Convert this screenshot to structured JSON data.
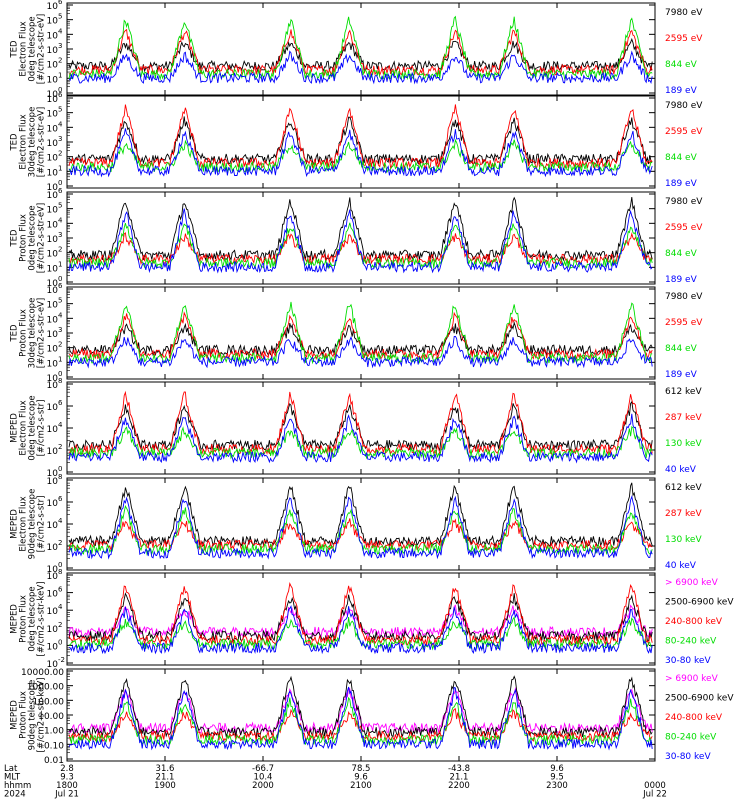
{
  "chart_data": {
    "type": "line",
    "x_axis": {
      "rows": [
        {
          "label": "Lat",
          "values": [
            "2.8",
            "31.6",
            "-66.7",
            "78.5",
            "-43.8",
            "9.6",
            ""
          ]
        },
        {
          "label": "MLT",
          "values": [
            "9.3",
            "21.1",
            "10.4",
            "9.6",
            "21.1",
            "9.5",
            ""
          ]
        },
        {
          "label": "hhmm",
          "values": [
            "1800",
            "1900",
            "2000",
            "2100",
            "2200",
            "2300",
            "0000"
          ]
        },
        {
          "label": "2024",
          "values": [
            "Jul 21",
            "",
            "",
            "",
            "",
            "",
            "Jul 22"
          ]
        }
      ],
      "time_range": [
        "1800",
        "0000"
      ]
    },
    "panels": [
      {
        "ylabel": [
          "TED",
          "Electron Flux",
          "0deg telescope",
          "[#/cm2-s-str-eV]"
        ],
        "yscale": "log",
        "yticks_exp": [
          0,
          1,
          2,
          3,
          4,
          5,
          6
        ],
        "legend": [
          {
            "text": "7980 eV",
            "color": "#000000"
          },
          {
            "text": "2595 eV",
            "color": "#ff0000"
          },
          {
            "text": "844 eV",
            "color": "#00dd00"
          },
          {
            "text": "189 eV",
            "color": "#0000ff"
          }
        ]
      },
      {
        "ylabel": [
          "TED",
          "Electron Flux",
          "30deg telescope",
          "[#/cm2-s-str-eV]"
        ],
        "yscale": "log",
        "yticks_exp": [
          0,
          1,
          2,
          3,
          4,
          5,
          6
        ],
        "legend": [
          {
            "text": "7980 eV",
            "color": "#000000"
          },
          {
            "text": "2595 eV",
            "color": "#ff0000"
          },
          {
            "text": "844 eV",
            "color": "#00dd00"
          },
          {
            "text": "189 eV",
            "color": "#0000ff"
          }
        ]
      },
      {
        "ylabel": [
          "TED",
          "Proton Flux",
          "0deg telescope",
          "[#/cm2-s-str-eV]"
        ],
        "yscale": "log",
        "yticks_exp": [
          0,
          1,
          2,
          3,
          4,
          5,
          6
        ],
        "legend": [
          {
            "text": "7980 eV",
            "color": "#000000"
          },
          {
            "text": "2595 eV",
            "color": "#ff0000"
          },
          {
            "text": "844 eV",
            "color": "#00dd00"
          },
          {
            "text": "189 eV",
            "color": "#0000ff"
          }
        ]
      },
      {
        "ylabel": [
          "TED",
          "Proton Flux",
          "30deg telescope",
          "[#/cm2-s-str-eV]"
        ],
        "yscale": "log",
        "yticks_exp": [
          0,
          1,
          2,
          3,
          4,
          5,
          6
        ],
        "legend": [
          {
            "text": "7980 eV",
            "color": "#000000"
          },
          {
            "text": "2595 eV",
            "color": "#ff0000"
          },
          {
            "text": "844 eV",
            "color": "#00dd00"
          },
          {
            "text": "189 eV",
            "color": "#0000ff"
          }
        ]
      },
      {
        "ylabel": [
          "MEPED",
          "Electron Flux",
          "0deg telescope",
          "[#/cm2-s-str]"
        ],
        "yscale": "log",
        "yticks_exp": [
          0,
          2,
          4,
          6,
          8
        ],
        "legend": [
          {
            "text": "612 keV",
            "color": "#000000"
          },
          {
            "text": "287 keV",
            "color": "#ff0000"
          },
          {
            "text": "130 keV",
            "color": "#00dd00"
          },
          {
            "text": "40 keV",
            "color": "#0000ff"
          }
        ]
      },
      {
        "ylabel": [
          "MEPED",
          "Electron Flux",
          "90deg telescope",
          "[#/cm2-s-str]"
        ],
        "yscale": "log",
        "yticks_exp": [
          0,
          2,
          4,
          6,
          8
        ],
        "legend": [
          {
            "text": "612 keV",
            "color": "#000000"
          },
          {
            "text": "287 keV",
            "color": "#ff0000"
          },
          {
            "text": "130 keV",
            "color": "#00dd00"
          },
          {
            "text": "40 keV",
            "color": "#0000ff"
          }
        ]
      },
      {
        "ylabel": [
          "MEPED",
          "Proton Flux",
          "0deg telescope",
          "[#/cm2-s-str-keV]"
        ],
        "yscale": "log",
        "yticks_exp": [
          -2,
          0,
          2,
          4,
          6,
          8
        ],
        "legend": [
          {
            "text": "> 6900 keV",
            "color": "#ff00ff"
          },
          {
            "text": "2500-6900 keV",
            "color": "#000000"
          },
          {
            "text": "240-800 keV",
            "color": "#ff0000"
          },
          {
            "text": "80-240 keV",
            "color": "#00dd00"
          },
          {
            "text": "30-80 keV",
            "color": "#0000ff"
          }
        ]
      },
      {
        "ylabel": [
          "MEPED",
          "Proton Flux",
          "90deg telescope",
          "[#/cm2-s-str-keV]"
        ],
        "yscale": "log",
        "ytick_labels": [
          "0.01",
          "0.10",
          "1.00",
          "10.00",
          "100.00",
          "1000.00",
          "10000.00"
        ],
        "legend": [
          {
            "text": "> 6900 keV",
            "color": "#ff00ff"
          },
          {
            "text": "2500-6900 keV",
            "color": "#000000"
          },
          {
            "text": "240-800 keV",
            "color": "#ff0000"
          },
          {
            "text": "80-240 keV",
            "color": "#00dd00"
          },
          {
            "text": "30-80 keV",
            "color": "#0000ff"
          }
        ]
      }
    ]
  }
}
